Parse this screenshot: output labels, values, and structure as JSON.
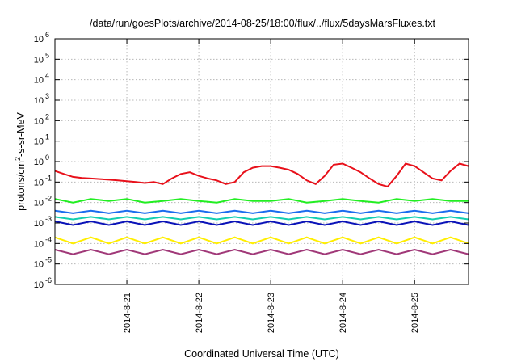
{
  "chart_data": {
    "type": "line",
    "title": "/data/run/goesPlots/archive/2014-08-25/18:00/flux/../flux/5daysMarsFluxes.txt",
    "xlabel": "Coordinated Universal Time (UTC)",
    "ylabel_parts": [
      "protons/cm",
      "2",
      "-s-sr-MeV"
    ],
    "y_scale": "log",
    "ylim": [
      1e-06,
      1000000.0
    ],
    "y_ticks": [
      {
        "base": "10",
        "exp": "-6",
        "value": 1e-06
      },
      {
        "base": "10",
        "exp": "-5",
        "value": 1e-05
      },
      {
        "base": "10",
        "exp": "-4",
        "value": 0.0001
      },
      {
        "base": "10",
        "exp": "-3",
        "value": 0.001
      },
      {
        "base": "10",
        "exp": "-2",
        "value": 0.01
      },
      {
        "base": "10",
        "exp": "-1",
        "value": 0.1
      },
      {
        "base": "10",
        "exp": "0",
        "value": 1
      },
      {
        "base": "10",
        "exp": "1",
        "value": 10
      },
      {
        "base": "10",
        "exp": "2",
        "value": 100
      },
      {
        "base": "10",
        "exp": "3",
        "value": 1000
      },
      {
        "base": "10",
        "exp": "4",
        "value": 10000
      },
      {
        "base": "10",
        "exp": "5",
        "value": 100000
      },
      {
        "base": "10",
        "exp": "6",
        "value": 1000000
      }
    ],
    "xlim": [
      "2014-08-20T00:00",
      "2014-08-25T18:00"
    ],
    "x_ticks": [
      "2014-8-21",
      "2014-8-22",
      "2014-8-23",
      "2014-8-24",
      "2014-8-25"
    ],
    "grid": true,
    "legend": "none",
    "series": [
      {
        "color": "#e8101a",
        "x": [
          "2014-08-20T00:00",
          "2014-08-20T03:00",
          "2014-08-20T06:00",
          "2014-08-20T09:00",
          "2014-08-20T12:00",
          "2014-08-20T15:00",
          "2014-08-20T18:00",
          "2014-08-20T21:00",
          "2014-08-21T00:00",
          "2014-08-21T03:00",
          "2014-08-21T06:00",
          "2014-08-21T09:00",
          "2014-08-21T12:00",
          "2014-08-21T15:00",
          "2014-08-21T18:00",
          "2014-08-21T21:00",
          "2014-08-22T00:00",
          "2014-08-22T03:00",
          "2014-08-22T06:00",
          "2014-08-22T09:00",
          "2014-08-22T12:00",
          "2014-08-22T15:00",
          "2014-08-22T18:00",
          "2014-08-22T21:00",
          "2014-08-23T00:00",
          "2014-08-23T03:00",
          "2014-08-23T06:00",
          "2014-08-23T09:00",
          "2014-08-23T12:00",
          "2014-08-23T15:00",
          "2014-08-23T18:00",
          "2014-08-23T21:00",
          "2014-08-24T00:00",
          "2014-08-24T03:00",
          "2014-08-24T06:00",
          "2014-08-24T09:00",
          "2014-08-24T12:00",
          "2014-08-24T15:00",
          "2014-08-24T18:00",
          "2014-08-24T21:00",
          "2014-08-25T00:00",
          "2014-08-25T03:00",
          "2014-08-25T06:00",
          "2014-08-25T09:00",
          "2014-08-25T12:00",
          "2014-08-25T15:00",
          "2014-08-25T18:00"
        ],
        "values": [
          0.35,
          0.25,
          0.18,
          0.16,
          0.15,
          0.14,
          0.13,
          0.12,
          0.11,
          0.1,
          0.09,
          0.1,
          0.08,
          0.15,
          0.25,
          0.3,
          0.2,
          0.15,
          0.12,
          0.08,
          0.1,
          0.3,
          0.5,
          0.6,
          0.6,
          0.5,
          0.4,
          0.25,
          0.12,
          0.08,
          0.2,
          0.7,
          0.8,
          0.5,
          0.3,
          0.15,
          0.08,
          0.06,
          0.2,
          0.8,
          0.6,
          0.3,
          0.15,
          0.12,
          0.35,
          0.8,
          0.6
        ]
      },
      {
        "color": "#22ee22",
        "x": [
          "2014-08-20T00:00",
          "2014-08-20T06:00",
          "2014-08-20T12:00",
          "2014-08-20T18:00",
          "2014-08-21T00:00",
          "2014-08-21T06:00",
          "2014-08-21T12:00",
          "2014-08-21T18:00",
          "2014-08-22T00:00",
          "2014-08-22T06:00",
          "2014-08-22T12:00",
          "2014-08-22T18:00",
          "2014-08-23T00:00",
          "2014-08-23T06:00",
          "2014-08-23T12:00",
          "2014-08-23T18:00",
          "2014-08-24T00:00",
          "2014-08-24T06:00",
          "2014-08-24T12:00",
          "2014-08-24T18:00",
          "2014-08-25T00:00",
          "2014-08-25T06:00",
          "2014-08-25T12:00",
          "2014-08-25T18:00"
        ],
        "values": [
          0.015,
          0.01,
          0.015,
          0.012,
          0.015,
          0.01,
          0.012,
          0.015,
          0.012,
          0.01,
          0.015,
          0.012,
          0.012,
          0.015,
          0.01,
          0.012,
          0.015,
          0.012,
          0.01,
          0.015,
          0.012,
          0.015,
          0.012,
          0.012
        ]
      },
      {
        "color": "#1a6cee",
        "x": [
          "2014-08-20T00:00",
          "2014-08-20T06:00",
          "2014-08-20T12:00",
          "2014-08-20T18:00",
          "2014-08-21T00:00",
          "2014-08-21T06:00",
          "2014-08-21T12:00",
          "2014-08-21T18:00",
          "2014-08-22T00:00",
          "2014-08-22T06:00",
          "2014-08-22T12:00",
          "2014-08-22T18:00",
          "2014-08-23T00:00",
          "2014-08-23T06:00",
          "2014-08-23T12:00",
          "2014-08-23T18:00",
          "2014-08-24T00:00",
          "2014-08-24T06:00",
          "2014-08-24T12:00",
          "2014-08-24T18:00",
          "2014-08-25T00:00",
          "2014-08-25T06:00",
          "2014-08-25T12:00",
          "2014-08-25T18:00"
        ],
        "values": [
          0.004,
          0.003,
          0.004,
          0.003,
          0.004,
          0.003,
          0.004,
          0.003,
          0.004,
          0.003,
          0.004,
          0.003,
          0.004,
          0.003,
          0.004,
          0.003,
          0.004,
          0.003,
          0.004,
          0.003,
          0.004,
          0.003,
          0.004,
          0.003
        ]
      },
      {
        "color": "#12cfb0",
        "x": [
          "2014-08-20T00:00",
          "2014-08-20T06:00",
          "2014-08-20T12:00",
          "2014-08-20T18:00",
          "2014-08-21T00:00",
          "2014-08-21T06:00",
          "2014-08-21T12:00",
          "2014-08-21T18:00",
          "2014-08-22T00:00",
          "2014-08-22T06:00",
          "2014-08-22T12:00",
          "2014-08-22T18:00",
          "2014-08-23T00:00",
          "2014-08-23T06:00",
          "2014-08-23T12:00",
          "2014-08-23T18:00",
          "2014-08-24T00:00",
          "2014-08-24T06:00",
          "2014-08-24T12:00",
          "2014-08-24T18:00",
          "2014-08-25T00:00",
          "2014-08-25T06:00",
          "2014-08-25T12:00",
          "2014-08-25T18:00"
        ],
        "values": [
          0.002,
          0.0015,
          0.002,
          0.0015,
          0.002,
          0.0015,
          0.002,
          0.0015,
          0.002,
          0.0015,
          0.002,
          0.0015,
          0.002,
          0.0015,
          0.002,
          0.0015,
          0.002,
          0.0015,
          0.002,
          0.0015,
          0.002,
          0.0015,
          0.002,
          0.0015
        ]
      },
      {
        "color": "#0a12b8",
        "x": [
          "2014-08-20T00:00",
          "2014-08-20T06:00",
          "2014-08-20T12:00",
          "2014-08-20T18:00",
          "2014-08-21T00:00",
          "2014-08-21T06:00",
          "2014-08-21T12:00",
          "2014-08-21T18:00",
          "2014-08-22T00:00",
          "2014-08-22T06:00",
          "2014-08-22T12:00",
          "2014-08-22T18:00",
          "2014-08-23T00:00",
          "2014-08-23T06:00",
          "2014-08-23T12:00",
          "2014-08-23T18:00",
          "2014-08-24T00:00",
          "2014-08-24T06:00",
          "2014-08-24T12:00",
          "2014-08-24T18:00",
          "2014-08-25T00:00",
          "2014-08-25T06:00",
          "2014-08-25T12:00",
          "2014-08-25T18:00"
        ],
        "values": [
          0.0012,
          0.0008,
          0.0012,
          0.0008,
          0.0012,
          0.0008,
          0.0012,
          0.0008,
          0.0012,
          0.0008,
          0.0012,
          0.0008,
          0.0012,
          0.0008,
          0.0012,
          0.0008,
          0.0012,
          0.0008,
          0.0012,
          0.0008,
          0.0012,
          0.0008,
          0.0012,
          0.0008
        ]
      },
      {
        "color": "#ffee00",
        "x": [
          "2014-08-20T00:00",
          "2014-08-20T06:00",
          "2014-08-20T12:00",
          "2014-08-20T18:00",
          "2014-08-21T00:00",
          "2014-08-21T06:00",
          "2014-08-21T12:00",
          "2014-08-21T18:00",
          "2014-08-22T00:00",
          "2014-08-22T06:00",
          "2014-08-22T12:00",
          "2014-08-22T18:00",
          "2014-08-23T00:00",
          "2014-08-23T06:00",
          "2014-08-23T12:00",
          "2014-08-23T18:00",
          "2014-08-24T00:00",
          "2014-08-24T06:00",
          "2014-08-24T12:00",
          "2014-08-24T18:00",
          "2014-08-25T00:00",
          "2014-08-25T06:00",
          "2014-08-25T12:00",
          "2014-08-25T18:00"
        ],
        "values": [
          0.0002,
          0.0001,
          0.0002,
          0.0001,
          0.0002,
          0.0001,
          0.0002,
          0.0001,
          0.0002,
          0.0001,
          0.0002,
          0.0001,
          0.0002,
          0.0001,
          0.0002,
          0.0001,
          0.0002,
          0.0001,
          0.0002,
          0.0001,
          0.0002,
          0.0001,
          0.0002,
          0.0001
        ]
      },
      {
        "color": "#a03878",
        "x": [
          "2014-08-20T00:00",
          "2014-08-20T06:00",
          "2014-08-20T12:00",
          "2014-08-20T18:00",
          "2014-08-21T00:00",
          "2014-08-21T06:00",
          "2014-08-21T12:00",
          "2014-08-21T18:00",
          "2014-08-22T00:00",
          "2014-08-22T06:00",
          "2014-08-22T12:00",
          "2014-08-22T18:00",
          "2014-08-23T00:00",
          "2014-08-23T06:00",
          "2014-08-23T12:00",
          "2014-08-23T18:00",
          "2014-08-24T00:00",
          "2014-08-24T06:00",
          "2014-08-24T12:00",
          "2014-08-24T18:00",
          "2014-08-25T00:00",
          "2014-08-25T06:00",
          "2014-08-25T12:00",
          "2014-08-25T18:00"
        ],
        "values": [
          5e-05,
          3e-05,
          5e-05,
          3e-05,
          5e-05,
          3e-05,
          5e-05,
          3e-05,
          5e-05,
          3e-05,
          5e-05,
          3e-05,
          5e-05,
          3e-05,
          5e-05,
          3e-05,
          5e-05,
          3e-05,
          5e-05,
          3e-05,
          5e-05,
          3e-05,
          5e-05,
          3e-05
        ]
      }
    ]
  }
}
